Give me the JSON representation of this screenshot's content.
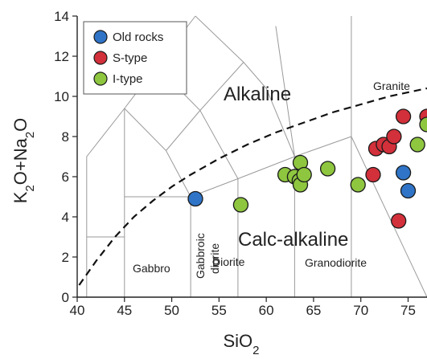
{
  "chart_data": {
    "type": "scatter",
    "title": "",
    "xlabel": "SiO2",
    "ylabel": "K2O+Na2O",
    "xlim": [
      40,
      77
    ],
    "ylim": [
      0,
      14
    ],
    "xticks": [
      40,
      45,
      50,
      55,
      60,
      65,
      70,
      75
    ],
    "yticks": [
      0,
      2,
      4,
      6,
      8,
      10,
      12,
      14
    ],
    "grid": false,
    "legend_position": "top-left",
    "series": [
      {
        "name": "Old rocks",
        "color": "#2f74c6",
        "points": [
          [
            52.5,
            4.9
          ],
          [
            74.5,
            6.2
          ],
          [
            75.0,
            5.3
          ]
        ]
      },
      {
        "name": "S-type",
        "color": "#d2303a",
        "points": [
          [
            71.3,
            6.1
          ],
          [
            71.6,
            7.4
          ],
          [
            72.4,
            7.6
          ],
          [
            73.0,
            7.5
          ],
          [
            73.5,
            8.0
          ],
          [
            74.5,
            9.0
          ],
          [
            74.0,
            3.8
          ],
          [
            77.0,
            9.0
          ]
        ]
      },
      {
        "name": "I-type",
        "color": "#8ec63f",
        "points": [
          [
            57.3,
            4.6
          ],
          [
            62.0,
            6.1
          ],
          [
            63.0,
            6.0
          ],
          [
            63.6,
            6.7
          ],
          [
            63.5,
            5.8
          ],
          [
            63.6,
            5.6
          ],
          [
            64.0,
            6.1
          ],
          [
            66.5,
            6.4
          ],
          [
            69.7,
            5.6
          ],
          [
            76.0,
            7.6
          ],
          [
            77.0,
            8.6
          ]
        ]
      }
    ],
    "field_labels": {
      "alkaline": "Alkaline",
      "calc_alkaline": "Calc-alkaline",
      "granite": "Granite",
      "gabbro": "Gabbro",
      "gabbroic": "Gabbroic",
      "diorite_rot": "diorite",
      "diorite": "Diorite",
      "granodiorite": "Granodiorite"
    }
  }
}
